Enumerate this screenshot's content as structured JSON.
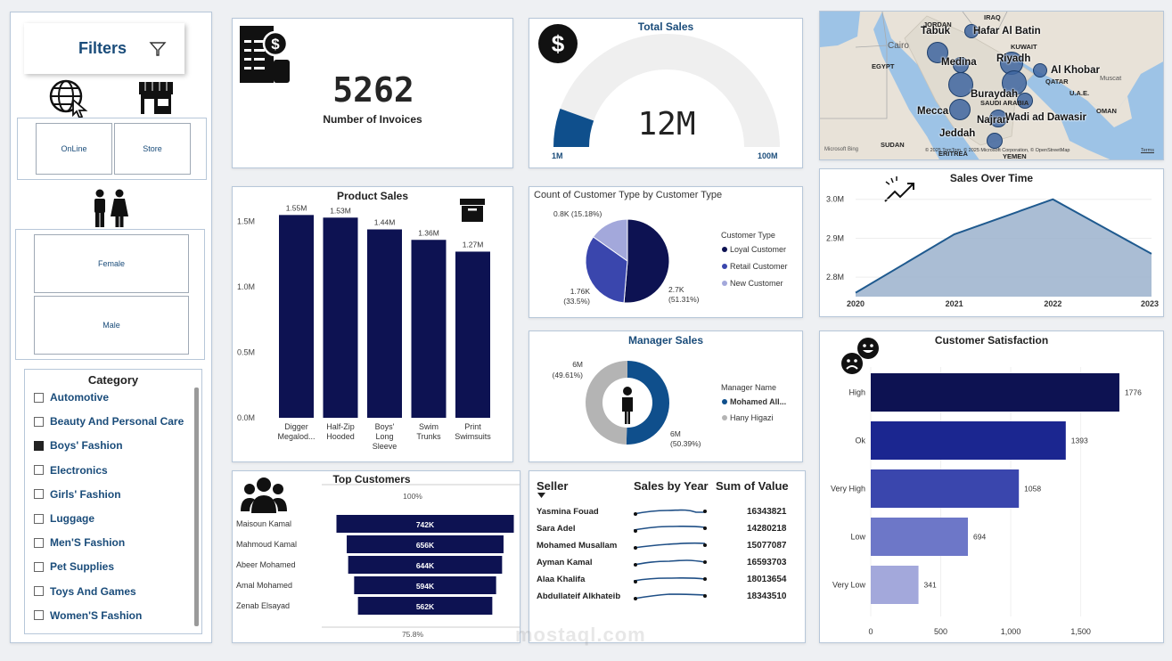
{
  "filters": {
    "title": "Filters",
    "channel_options": [
      "OnLine",
      "Store"
    ],
    "gender_options": [
      "Female",
      "Male"
    ],
    "category": {
      "title": "Category",
      "items": [
        {
          "label": "Automotive",
          "checked": false
        },
        {
          "label": "Beauty And Personal Care",
          "checked": false
        },
        {
          "label": "Boys' Fashion",
          "checked": true
        },
        {
          "label": "Electronics",
          "checked": false
        },
        {
          "label": "Girls' Fashion",
          "checked": false
        },
        {
          "label": "Luggage",
          "checked": false
        },
        {
          "label": "Men'S Fashion",
          "checked": false
        },
        {
          "label": "Pet Supplies",
          "checked": false
        },
        {
          "label": "Toys And Games",
          "checked": false
        },
        {
          "label": "Women'S Fashion",
          "checked": false
        }
      ]
    }
  },
  "invoices": {
    "value": "5262",
    "label": "Number of Invoices"
  },
  "total_sales": {
    "title": "Total Sales",
    "value": "12M",
    "min_label": "1M",
    "max_label": "100M",
    "fraction": 0.11
  },
  "map": {
    "cities": [
      {
        "name": "Tabuk",
        "size": 12
      },
      {
        "name": "Hafar Al Batin",
        "size": 8
      },
      {
        "name": "Medina",
        "size": 10
      },
      {
        "name": "Riyadh",
        "size": 14
      },
      {
        "name": "Al Khobar",
        "size": 8
      },
      {
        "name": "Buraydah",
        "size": 14
      },
      {
        "name": "Mecca",
        "size": 12
      },
      {
        "name": "Najran",
        "size": 10
      },
      {
        "name": "Wadi ad Dawasir",
        "size": 9
      },
      {
        "name": "Jeddah",
        "size": 9
      }
    ],
    "regions": [
      "JORDAN",
      "IRAQ",
      "KUWAIT",
      "Cairo",
      "EGYPT",
      "QATAR",
      "U.A.E.",
      "Muscat",
      "SAUDI ARABIA",
      "OMAN",
      "SUDAN",
      "ERITREA",
      "YEMEN"
    ],
    "attribution": "© 2025 TomTom, © 2025 Microsoft Corporation, © OpenStreetMap",
    "terms": "Terms",
    "bing": "Microsoft Bing"
  },
  "chart_data": [
    {
      "id": "product_sales",
      "type": "bar",
      "title": "Product Sales",
      "categories": [
        [
          "Digger",
          "Megalod..."
        ],
        [
          "Half-Zip",
          "Hooded"
        ],
        [
          "Boys'",
          "Long",
          "Sleeve"
        ],
        [
          "Swim",
          "Trunks"
        ],
        [
          "Print",
          "Swimsuits"
        ]
      ],
      "values": [
        1.55,
        1.53,
        1.44,
        1.36,
        1.27
      ],
      "data_labels": [
        "1.55M",
        "1.53M",
        "1.44M",
        "1.36M",
        "1.27M"
      ],
      "yticks": [
        "0.0M",
        "0.5M",
        "1.0M",
        "1.5M"
      ],
      "ylim": [
        0,
        1.6
      ],
      "color": "#0d1252"
    },
    {
      "id": "customer_type",
      "type": "pie",
      "title": "Count of Customer Type by Customer Type",
      "legend_title": "Customer Type",
      "slices": [
        {
          "name": "Loyal Customer",
          "value": 2.7,
          "percent": 51.31,
          "label": "2.7K",
          "pct_label": "(51.31%)",
          "color": "#0d1252"
        },
        {
          "name": "Retail Customer",
          "value": 1.76,
          "percent": 33.5,
          "label": "1.76K",
          "pct_label": "(33.5%)",
          "color": "#3a46ad"
        },
        {
          "name": "New Customer",
          "value": 0.8,
          "percent": 15.18,
          "label": "0.8K (15.18%)",
          "pct_label": "",
          "color": "#a3a8db"
        }
      ]
    },
    {
      "id": "manager_sales",
      "type": "pie",
      "title": "Manager Sales",
      "legend_title": "Manager Name",
      "slices": [
        {
          "name": "Mohamed All...",
          "value": 6,
          "percent": 50.39,
          "label": "6M",
          "pct_label": "(50.39%)",
          "color": "#0f4f8c"
        },
        {
          "name": "Hany Higazi",
          "value": 6,
          "percent": 49.61,
          "label": "6M",
          "pct_label": "(49.61%)",
          "color": "#b4b4b4"
        }
      ]
    },
    {
      "id": "sales_over_time",
      "type": "area",
      "title": "Sales Over Time",
      "x": [
        "2020",
        "2021",
        "2022",
        "2023"
      ],
      "values": [
        2.76,
        2.91,
        3.0,
        2.86
      ],
      "yticks": [
        "2.8M",
        "2.9M",
        "3.0M"
      ],
      "ytick_values": [
        2.8,
        2.9,
        3.0
      ],
      "ylim": [
        2.75,
        3.02
      ],
      "color": "#1f5a8f"
    },
    {
      "id": "customer_satisfaction",
      "type": "bar",
      "orientation": "horizontal",
      "title": "Customer Satisfaction",
      "categories": [
        "High",
        "Ok",
        "Very High",
        "Low",
        "Very Low"
      ],
      "values": [
        1776,
        1393,
        1058,
        694,
        341
      ],
      "colors": [
        "#0d1252",
        "#1b2690",
        "#3a46ad",
        "#6d77c8",
        "#a3a8db"
      ],
      "xticks": [
        "0",
        "500",
        "1,000",
        "1,500"
      ],
      "xtick_values": [
        0,
        500,
        1000,
        1500
      ],
      "xlim": [
        0,
        2050
      ]
    },
    {
      "id": "top_customers",
      "type": "bar",
      "orientation": "funnel",
      "title": "Top Customers",
      "top_label": "100%",
      "bottom_label": "75.8%",
      "categories": [
        "Maisoun Kamal",
        "Mahmoud Kamal",
        "Abeer Mohamed",
        "Amal Mohamed",
        "Zenab Elsayad"
      ],
      "values": [
        742,
        656,
        644,
        594,
        562
      ],
      "data_labels": [
        "742K",
        "656K",
        "644K",
        "594K",
        "562K"
      ],
      "color": "#0d1252"
    }
  ],
  "seller_table": {
    "headers": [
      "Seller",
      "Sales by Year",
      "Sum of Value"
    ],
    "rows": [
      {
        "seller": "Yasmina Fouad",
        "value": "16343821"
      },
      {
        "seller": "Sara Adel",
        "value": "14280218"
      },
      {
        "seller": "Mohamed Musallam",
        "value": "15077087"
      },
      {
        "seller": "Ayman Kamal",
        "value": "16593703"
      },
      {
        "seller": "Alaa Khalifa",
        "value": "18013654"
      },
      {
        "seller": "Abdullateif Alkhateib",
        "value": "18343510"
      }
    ]
  },
  "watermark": "mostaql.com"
}
